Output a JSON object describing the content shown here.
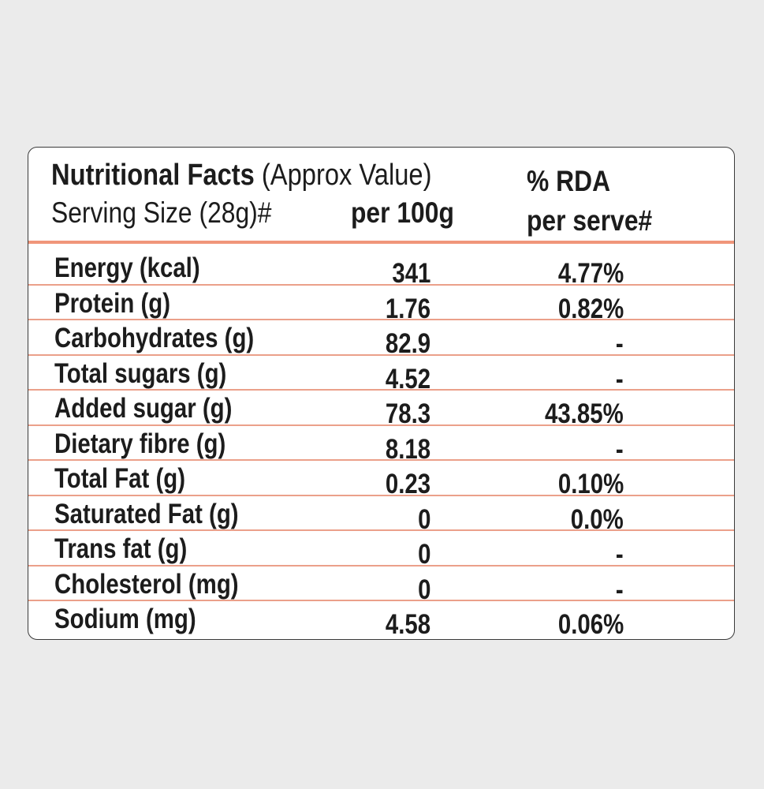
{
  "header": {
    "title_bold": "Nutritional Facts",
    "title_rest": "(Approx Value)",
    "serving_size": "Serving Size (28g)#",
    "per_100g": "per 100g",
    "rda_line1": "% RDA",
    "rda_line2": "per serve#"
  },
  "nutrients": [
    {
      "name": "Energy (kcal)",
      "per_100g": "341",
      "rda": "4.77%"
    },
    {
      "name": "Protein (g)",
      "per_100g": "1.76",
      "rda": "0.82%"
    },
    {
      "name": "Carbohydrates (g)",
      "per_100g": "82.9",
      "rda": "-"
    },
    {
      "name": "Total sugars (g)",
      "per_100g": "4.52",
      "rda": "-"
    },
    {
      "name": "Added sugar (g)",
      "per_100g": "78.3",
      "rda": "43.85%"
    },
    {
      "name": "Dietary fibre (g)",
      "per_100g": "8.18",
      "rda": "-"
    },
    {
      "name": "Total Fat (g)",
      "per_100g": "0.23",
      "rda": "0.10%"
    },
    {
      "name": "Saturated Fat (g)",
      "per_100g": "0",
      "rda": "0.0%"
    },
    {
      "name": "Trans fat (g)",
      "per_100g": "0",
      "rda": "-"
    },
    {
      "name": "Cholesterol (mg)",
      "per_100g": "0",
      "rda": "-"
    },
    {
      "name": "Sodium (mg)",
      "per_100g": "4.58",
      "rda": "0.06%"
    }
  ],
  "colors": {
    "background": "#ebebeb",
    "card": "#ffffff",
    "rule": "#f0967a",
    "text": "#1c1c1c"
  }
}
